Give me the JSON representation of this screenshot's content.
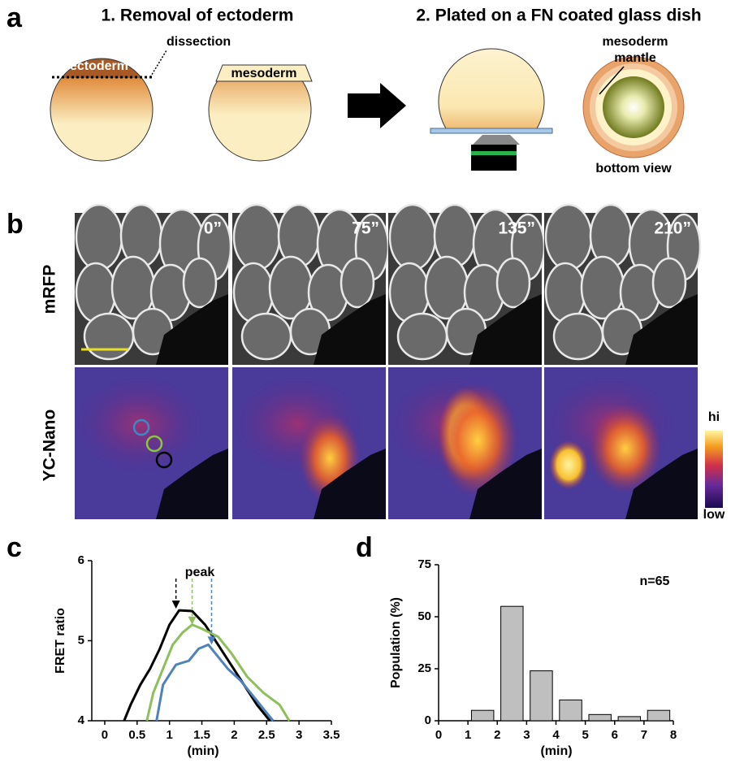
{
  "panels": {
    "a": {
      "label": "a",
      "step1": "1. Removal of ectoderm",
      "step2": "2. Plated on a FN coated glass dish",
      "dissection": "dissection",
      "ectoderm": "ectoderm",
      "mesoderm": "mesoderm",
      "mantle": [
        "mesoderm",
        "mantle"
      ],
      "bottom_view": "bottom view"
    },
    "b": {
      "label": "b",
      "rows": [
        "mRFP",
        "YC-Nano"
      ],
      "times": [
        "0”",
        "75”",
        "135”",
        "210”"
      ],
      "scale_hi": "hi",
      "scale_low": "low"
    },
    "c": {
      "label": "c"
    },
    "d": {
      "label": "d"
    }
  },
  "chart_data": [
    {
      "type": "line",
      "annotation": "peak",
      "xlabel": "(min)",
      "ylabel": "FRET ratio",
      "xlim": [
        -0.2,
        3.5
      ],
      "ylim": [
        4,
        6
      ],
      "xticks": [
        0,
        0.5,
        1,
        1.5,
        2,
        2.5,
        3,
        3.5
      ],
      "yticks": [
        4,
        5,
        6
      ],
      "series": [
        {
          "color": "#000000",
          "x": [
            0.3,
            0.4,
            0.55,
            0.7,
            0.85,
            1.0,
            1.15,
            1.35,
            1.55,
            1.75,
            1.95,
            2.15,
            2.35,
            2.55
          ],
          "values": [
            4.0,
            4.2,
            4.45,
            4.65,
            4.9,
            5.2,
            5.38,
            5.37,
            5.2,
            4.95,
            4.7,
            4.45,
            4.2,
            4.0
          ]
        },
        {
          "color": "#8dbf5a",
          "x": [
            0.65,
            0.75,
            0.9,
            1.05,
            1.2,
            1.35,
            1.5,
            1.75,
            1.95,
            2.2,
            2.45,
            2.7,
            2.85
          ],
          "values": [
            4.0,
            4.35,
            4.65,
            4.95,
            5.1,
            5.2,
            5.15,
            5.05,
            4.85,
            4.55,
            4.35,
            4.2,
            4.0
          ]
        },
        {
          "color": "#4f81bd",
          "x": [
            0.8,
            0.9,
            1.1,
            1.3,
            1.45,
            1.6,
            1.75,
            1.9,
            2.1,
            2.3,
            2.5,
            2.6
          ],
          "values": [
            4.0,
            4.45,
            4.7,
            4.75,
            4.9,
            4.95,
            4.8,
            4.65,
            4.5,
            4.3,
            4.1,
            4.0
          ]
        }
      ],
      "peaks": {
        "x": [
          1.1,
          1.35,
          1.65
        ],
        "y": [
          5.4,
          5.2,
          4.95
        ]
      }
    },
    {
      "type": "histogram",
      "annotation": "n=65",
      "xlabel": "(min)",
      "ylabel": "Population (%)",
      "bins": [
        1,
        2,
        3,
        4,
        5,
        6,
        7,
        8
      ],
      "values": [
        5,
        55,
        24,
        10,
        3,
        2,
        5
      ],
      "color": "#bfbfbf",
      "xlim": [
        0,
        8
      ],
      "ylim": [
        0,
        75
      ],
      "xticks": [
        0,
        1,
        2,
        3,
        4,
        5,
        6,
        7,
        8
      ],
      "yticks": [
        0,
        25,
        50,
        75
      ]
    }
  ]
}
